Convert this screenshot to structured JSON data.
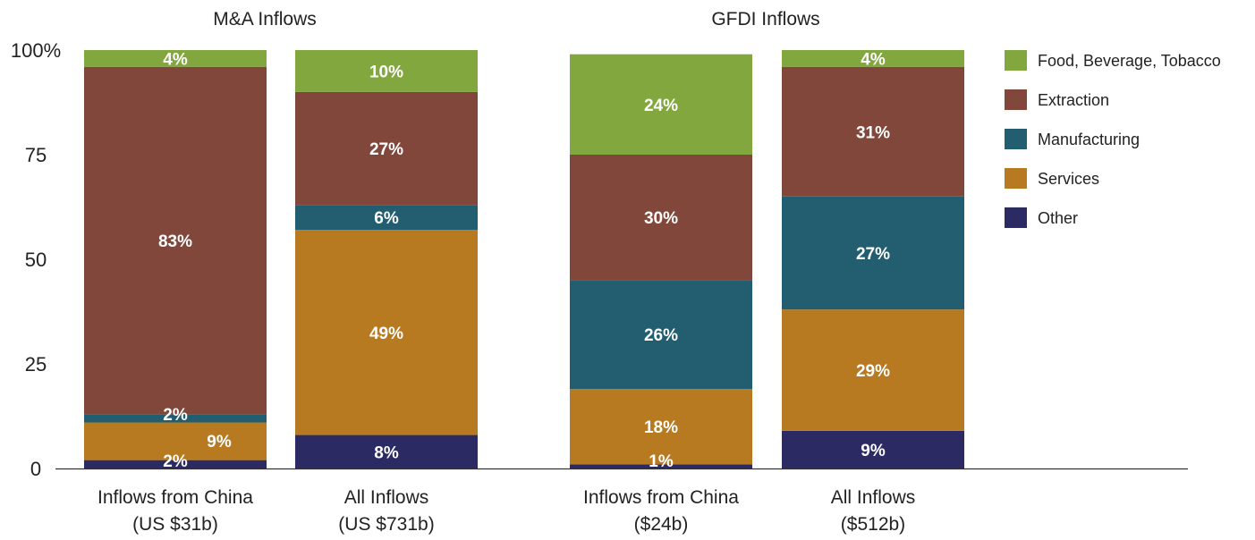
{
  "chart_data": {
    "type": "bar",
    "stacked": true,
    "groups": [
      "M&A Inflows",
      "GFDI Inflows"
    ],
    "categories": [
      {
        "group": "M&A Inflows",
        "label": [
          "Inflows from China",
          "(US $31b)"
        ]
      },
      {
        "group": "M&A Inflows",
        "label": [
          "All Inflows",
          "(US $731b)"
        ]
      },
      {
        "group": "GFDI Inflows",
        "label": [
          "Inflows from China",
          "($24b)"
        ]
      },
      {
        "group": "GFDI Inflows",
        "label": [
          "All Inflows",
          "($512b)"
        ]
      }
    ],
    "series": [
      {
        "name": "Other",
        "color": "#2b2a63",
        "values": [
          2,
          8,
          1,
          9
        ]
      },
      {
        "name": "Services",
        "color": "#b87a21",
        "values": [
          9,
          49,
          18,
          29
        ]
      },
      {
        "name": "Manufacturing",
        "color": "#235e70",
        "values": [
          2,
          6,
          26,
          27
        ]
      },
      {
        "name": "Extraction",
        "color": "#82473b",
        "values": [
          83,
          27,
          30,
          31
        ]
      },
      {
        "name": "Food, Beverage, Tobacco",
        "color": "#82a73e",
        "values": [
          4,
          10,
          24,
          4
        ]
      }
    ],
    "labels": [
      [
        "2%",
        "8%",
        "1%",
        "9%"
      ],
      [
        "9%",
        "49%",
        "18%",
        "29%"
      ],
      [
        "2%",
        "6%",
        "26%",
        "27%"
      ],
      [
        "83%",
        "27%",
        "30%",
        "31%"
      ],
      [
        "4%",
        "10%",
        "24%",
        "4%"
      ]
    ],
    "legend_order": [
      "Food, Beverage, Tobacco",
      "Extraction",
      "Manufacturing",
      "Services",
      "Other"
    ],
    "y_ticks": [
      "0",
      "25",
      "50",
      "75",
      "100%"
    ],
    "ylim": [
      0,
      100
    ],
    "legend_position": "right"
  }
}
